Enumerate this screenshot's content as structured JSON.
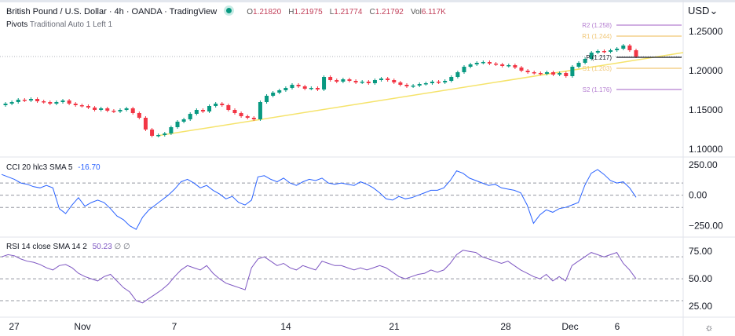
{
  "header": {
    "title": "British Pound / U.S. Dollar · 4h · OANDA · TradingView",
    "ohlc": {
      "o_label": "O",
      "o": "1.21820",
      "h_label": "H",
      "h": "1.21975",
      "l_label": "L",
      "l": "1.21774",
      "c_label": "C",
      "c": "1.21792",
      "vol_label": "Vol",
      "vol": "6.117K"
    },
    "pivots_name": "Pivots",
    "pivots_params": "Traditional Auto 1 Left 1",
    "currency": "USD"
  },
  "colors": {
    "up": "#089981",
    "down": "#f23645",
    "trend": "#f5e36b",
    "cci": "#2962ff",
    "rsi": "#7e57c2",
    "r2": "#b57fd1",
    "r1": "#f0c674",
    "p": "#131722",
    "s1": "#f0c674",
    "s2": "#b57fd1"
  },
  "chart_data": [
    {
      "type": "candlestick",
      "ylim": [
        1.09,
        1.27
      ],
      "y_ticks": [
        "1.25000",
        "1.20000",
        "1.15000",
        "1.10000"
      ],
      "y_tick_values": [
        1.25,
        1.2,
        1.15,
        1.1
      ],
      "x_ticks": [
        "27",
        "Nov",
        "7",
        "14",
        "21",
        "28",
        "Dec",
        "6"
      ],
      "closes": [
        1.158,
        1.16,
        1.163,
        1.162,
        1.164,
        1.161,
        1.16,
        1.158,
        1.16,
        1.162,
        1.158,
        1.156,
        1.155,
        1.153,
        1.15,
        1.152,
        1.149,
        1.148,
        1.15,
        1.152,
        1.146,
        1.14,
        1.125,
        1.117,
        1.118,
        1.12,
        1.128,
        1.135,
        1.138,
        1.145,
        1.15,
        1.148,
        1.155,
        1.158,
        1.156,
        1.15,
        1.146,
        1.142,
        1.14,
        1.138,
        1.16,
        1.168,
        1.172,
        1.175,
        1.178,
        1.182,
        1.18,
        1.177,
        1.178,
        1.176,
        1.192,
        1.188,
        1.186,
        1.189,
        1.187,
        1.185,
        1.186,
        1.184,
        1.188,
        1.19,
        1.188,
        1.185,
        1.182,
        1.18,
        1.181,
        1.183,
        1.184,
        1.186,
        1.185,
        1.187,
        1.192,
        1.198,
        1.205,
        1.208,
        1.21,
        1.211,
        1.209,
        1.208,
        1.206,
        1.207,
        1.204,
        1.2,
        1.198,
        1.197,
        1.196,
        1.198,
        1.195,
        1.197,
        1.193,
        1.205,
        1.21,
        1.215,
        1.223,
        1.225,
        1.224,
        1.226,
        1.228,
        1.232,
        1.226,
        1.218
      ],
      "pivots": [
        {
          "label": "R2 (1.258)",
          "value": 1.258,
          "key": "r2"
        },
        {
          "label": "R1 (1.244)",
          "value": 1.244,
          "key": "r1"
        },
        {
          "label": "P (1.217)",
          "value": 1.217,
          "key": "p"
        },
        {
          "label": "S1 (1.203)",
          "value": 1.203,
          "key": "s1"
        },
        {
          "label": "S2 (1.176)",
          "value": 1.176,
          "key": "s2"
        }
      ],
      "trendline": {
        "from": 1.117,
        "to": 1.223
      }
    },
    {
      "type": "line",
      "name": "CCI 20 hlc3 SMA 5",
      "value_label": "-16.70",
      "ylim": [
        -330,
        300
      ],
      "y_ticks": [
        "250.00",
        "0.00",
        "−250.00"
      ],
      "y_tick_values": [
        250,
        0,
        -250
      ],
      "bands": [
        100,
        0,
        -100
      ],
      "values": [
        170,
        150,
        130,
        100,
        90,
        70,
        60,
        80,
        60,
        -110,
        -150,
        -80,
        -20,
        -90,
        -60,
        -40,
        -60,
        -110,
        -170,
        -200,
        -250,
        -280,
        -180,
        -120,
        -80,
        -40,
        0,
        50,
        110,
        130,
        100,
        60,
        80,
        40,
        10,
        -30,
        -10,
        -60,
        -80,
        -40,
        150,
        160,
        130,
        110,
        140,
        100,
        80,
        110,
        130,
        120,
        140,
        100,
        90,
        100,
        90,
        80,
        110,
        90,
        60,
        20,
        -30,
        -40,
        -10,
        -30,
        -20,
        0,
        20,
        40,
        40,
        60,
        120,
        200,
        180,
        140,
        120,
        100,
        80,
        90,
        60,
        50,
        40,
        20,
        -80,
        -230,
        -160,
        -120,
        -140,
        -110,
        -100,
        -80,
        -60,
        80,
        180,
        210,
        170,
        120,
        100,
        110,
        60,
        -17
      ]
    },
    {
      "type": "line",
      "name": "RSI 14 close SMA 14 2",
      "value_label": "50.23",
      "extra_labels": [
        "∅",
        "∅"
      ],
      "ylim": [
        15,
        88
      ],
      "y_ticks": [
        "75.00",
        "50.00",
        "25.00"
      ],
      "y_tick_values": [
        75,
        50,
        25
      ],
      "bands": [
        70,
        50,
        30
      ],
      "values": [
        70,
        72,
        71,
        68,
        66,
        65,
        63,
        60,
        58,
        62,
        63,
        60,
        55,
        52,
        50,
        48,
        52,
        54,
        48,
        42,
        38,
        30,
        28,
        32,
        36,
        40,
        45,
        52,
        58,
        62,
        60,
        58,
        62,
        55,
        50,
        46,
        44,
        42,
        40,
        60,
        68,
        70,
        66,
        62,
        64,
        60,
        58,
        62,
        60,
        58,
        66,
        64,
        62,
        62,
        60,
        58,
        60,
        58,
        60,
        62,
        60,
        56,
        52,
        50,
        52,
        54,
        55,
        58,
        56,
        58,
        64,
        72,
        76,
        75,
        74,
        70,
        68,
        66,
        64,
        66,
        62,
        58,
        55,
        52,
        50,
        54,
        48,
        52,
        48,
        62,
        66,
        70,
        74,
        72,
        70,
        72,
        74,
        64,
        58,
        50
      ]
    }
  ]
}
